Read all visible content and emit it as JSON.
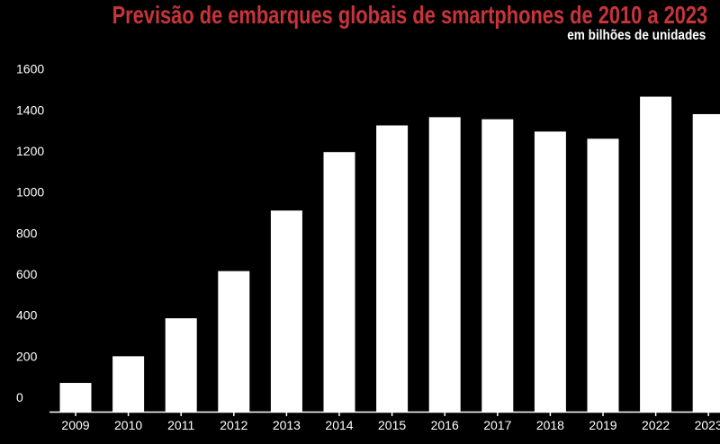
{
  "chart_data": {
    "type": "bar",
    "title": "Previsão de embarques globais de smartphones de 2010 a 2023",
    "subtitle": "em bilhões de unidades",
    "categories": [
      "2009",
      "2010",
      "2011",
      "2012",
      "2013",
      "2014",
      "2015",
      "2016",
      "2017",
      "2018",
      "2019",
      "2022",
      "2023"
    ],
    "values": [
      140,
      270,
      455,
      685,
      980,
      1265,
      1395,
      1435,
      1425,
      1365,
      1330,
      1535,
      1450
    ],
    "ylim": [
      0,
      1600
    ],
    "yticks": [
      "0",
      "200",
      "400",
      "600",
      "800",
      "1000",
      "1200",
      "1400",
      "1600"
    ],
    "grid": false,
    "colors": {
      "background": "#000000",
      "bar": "#ffffff",
      "title": "#c8343a",
      "text": "#ffffff",
      "axis": "#ffffff"
    }
  }
}
